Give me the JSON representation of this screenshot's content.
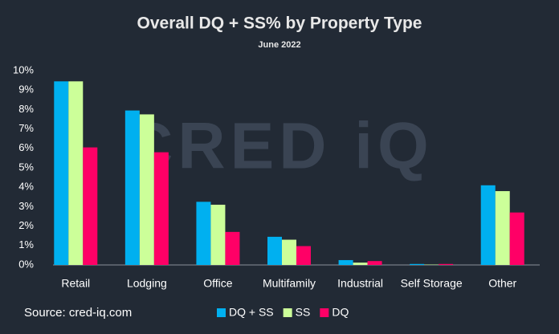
{
  "chart_data": {
    "type": "bar",
    "title": "Overall DQ + SS% by Property Type",
    "subtitle": "June 2022",
    "watermark": "CRED iQ",
    "source": "Source:   cred-iq.com",
    "categories": [
      "Retail",
      "Lodging",
      "Office",
      "Multifamily",
      "Industrial",
      "Self Storage",
      "Other"
    ],
    "series": [
      {
        "name": "DQ + SS",
        "color": "#00b0f0",
        "values": [
          9.45,
          7.95,
          3.25,
          1.45,
          0.25,
          0.05,
          4.1
        ]
      },
      {
        "name": "SS",
        "color": "#ccff99",
        "values": [
          9.45,
          7.75,
          3.1,
          1.3,
          0.12,
          0.02,
          3.8
        ]
      },
      {
        "name": "DQ",
        "color": "#ff0066",
        "values": [
          6.05,
          5.8,
          1.7,
          0.97,
          0.2,
          0.05,
          2.7
        ]
      }
    ],
    "ylim": [
      0,
      10
    ],
    "yticks": [
      {
        "value": 0,
        "label": "0%"
      },
      {
        "value": 1,
        "label": "1%"
      },
      {
        "value": 2,
        "label": "2%"
      },
      {
        "value": 3,
        "label": "3%"
      },
      {
        "value": 4,
        "label": "4%"
      },
      {
        "value": 5,
        "label": "5%"
      },
      {
        "value": 6,
        "label": "6%"
      },
      {
        "value": 7,
        "label": "7%"
      },
      {
        "value": 8,
        "label": "8%"
      },
      {
        "value": 9,
        "label": "9%"
      },
      {
        "value": 10,
        "label": "10%"
      }
    ],
    "grid": false,
    "legend": "bottom"
  }
}
